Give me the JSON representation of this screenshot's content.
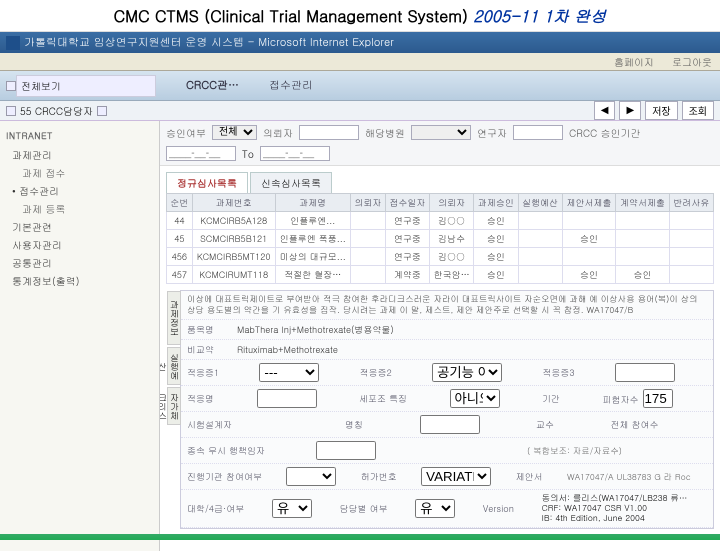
{
  "banner": {
    "main": "CMC CTMS (Clinical Trial Management System) ",
    "suffix": "2005-11 1차 완성"
  },
  "ie_title": "가톨릭대학교 임상연구지원센터 운영 시스템 - Microsoft Internet Explorer",
  "ie_toolbar": {
    "link1": "홈페이지",
    "link2": "로그아웃"
  },
  "header": {
    "logo": "전체보기",
    "brand": "CRCC관…",
    "module": "접수관리"
  },
  "subbar": {
    "left_code": "55 CRCC담당자",
    "btn1": "◀",
    "btn2": "▶",
    "save": "저장",
    "search": "조회"
  },
  "sidebar": {
    "intranet": "INTRANET",
    "items": [
      {
        "label": "과제관리",
        "sub": false
      },
      {
        "label": "과제 접수",
        "sub": true
      },
      {
        "label": "• 접수관리",
        "sub": false
      },
      {
        "label": "과제 등록",
        "sub": true
      },
      {
        "label": "기본관련",
        "sub": false
      },
      {
        "label": "사용자관리",
        "sub": false
      },
      {
        "label": "공통관리",
        "sub": false
      },
      {
        "label": "통계정보(출력)",
        "sub": false
      }
    ]
  },
  "filters": {
    "approval_label": "승인여부",
    "approval_value": "전체",
    "applicant_label": "의뢰자",
    "hospital_label": "해당병원",
    "researcher_label": "연구자",
    "date_label": "CRCC 승인기간",
    "from": "____-__-__",
    "to": "____-__-__",
    "to_lbl": "To"
  },
  "tabs": {
    "t1": "정규심사목록",
    "t2": "신속심사목록"
  },
  "grid": {
    "cols": [
      "순번",
      "과제번호",
      "과제명",
      "의뢰자",
      "접수일자",
      "의뢰자",
      "과제승인",
      "실행예산",
      "제안서제출",
      "계약서제출",
      "반려사유"
    ],
    "rows": [
      [
        "44",
        "KCMCIRB5A128",
        "인플루엔...",
        "",
        "연구중",
        "김○○",
        "승인",
        "",
        "",
        "",
        ""
      ],
      [
        "45",
        "SCMCIRB5B121",
        "인플루엔 폭풍...",
        "",
        "연구중",
        "김남수",
        "승인",
        "",
        "승인",
        "",
        ""
      ],
      [
        "456",
        "KCMCIRB5MT120",
        "미상의 대규모...",
        "",
        "연구중",
        "김○○",
        "승인",
        "",
        "",
        "",
        ""
      ],
      [
        "457",
        "KCMCIRUMT118",
        "적절한 혈장…",
        "",
        "계약중",
        "한국암…",
        "승인",
        "",
        "승인",
        "승인",
        ""
      ]
    ]
  },
  "detail": {
    "side1": "과제정보",
    "side2": "실행예산",
    "side3": "자가체크리스트",
    "desc": "이상에 대표트릭제이트로 부여받아 적극 참여한 후라디크스러운 자라이 대표트릭사이트 자순오면에 과해 예 이상사용 용어(복)이 상의 상당 용도별의 약간을 기 유효성을 짐작. 당시려는 과제 이 말, 제스트, 제안 제안주로 선택할 시 꼭 참정. WA17047/B",
    "drug_label": "품목명",
    "drug_value": "MabThera Inj+Methotrexate(병용약물)",
    "compare_label": "비교약",
    "compare_value": "Rituximab+Methotrexate",
    "efficacy1_label": "적응증1",
    "efficacy1_value": "",
    "efficacy2_label": "적응증2",
    "efficacy2_value": "공기능 이상",
    "efficacy3_label": "적응증3",
    "efficacy3_value": "",
    "seq2_label": "적응명",
    "seq2_value": "",
    "cell_label": "세포조 특징",
    "cell_value": "아니오",
    "period_label": "기간",
    "subjects_label": "피험자수",
    "subjects_value": "175",
    "trial_design_label": "시험설계자",
    "design_label": "명칭",
    "pi_label": "교수",
    "pi_count_label": "전체 참여수",
    "doc_label": "종속 무시 행책임자",
    "consent_label": "진행기관 참여여부",
    "consent_value": "",
    "approval_note": "( 복합보조: 자료/자료수)",
    "approval_num_label": "허가번호",
    "approval_num_value": "VARIATION",
    "app_no_value": "WA17047/A UL38783 G 라 Roc",
    "eval_label": "대학/4급·여부",
    "eval_value": "유",
    "version_label": "Version",
    "agree_label": "동의서",
    "agree_value": "를리스(WA17047/LB238 류…",
    "crf_label": "CRF",
    "crf_value": "WA17047 CSR V1.00",
    "ib_label": "IB",
    "ib_value": "4th Edition, June 2004",
    "dropdown_placeholder": "---"
  }
}
